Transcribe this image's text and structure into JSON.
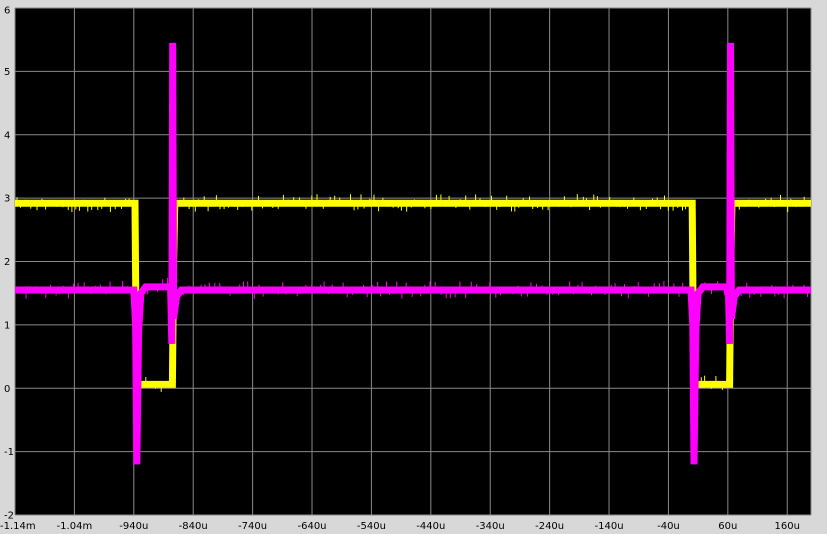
{
  "chart_data": {
    "type": "line",
    "title": "",
    "xlabel": "",
    "ylabel": "",
    "xlim": [
      -1.14,
      0.2
    ],
    "ylim": [
      -2,
      6
    ],
    "grid": true,
    "x_unit": "ms",
    "x_tick_values": [
      -1.14,
      -1.04,
      -0.94,
      -0.84,
      -0.74,
      -0.64,
      -0.54,
      -0.44,
      -0.34,
      -0.24,
      -0.14,
      -0.04,
      0.06,
      0.16
    ],
    "x_tick_labels": [
      "-1.14m",
      "-1.04m",
      "-940u",
      "-840u",
      "-740u",
      "-640u",
      "-540u",
      "-440u",
      "-340u",
      "-240u",
      "-140u",
      "-40u",
      "60u",
      "160u"
    ],
    "y_tick_values": [
      -2,
      -1,
      0,
      1,
      2,
      3,
      4,
      5,
      6
    ],
    "y_tick_labels": [
      "-2",
      "-1",
      "0",
      "1",
      "2",
      "3",
      "4",
      "5",
      "6"
    ],
    "series": [
      {
        "color": "#ffff00",
        "x": [
          -1.14,
          -0.938,
          -0.936,
          -0.934,
          -0.875,
          -0.873,
          -0.871,
          -0.0,
          0.002,
          0.004,
          0.063,
          0.065,
          0.067,
          0.2
        ],
        "y": [
          2.92,
          2.92,
          0.6,
          0.06,
          0.06,
          2.0,
          2.92,
          2.92,
          0.6,
          0.06,
          0.06,
          2.0,
          2.92,
          2.92
        ]
      },
      {
        "color": "#ff00ff",
        "x": [
          -1.14,
          -0.94,
          -0.937,
          -0.935,
          -0.932,
          -0.928,
          -0.92,
          -0.878,
          -0.876,
          -0.8745,
          -0.873,
          -0.868,
          -0.86,
          -0.002,
          0.001,
          0.003,
          0.006,
          0.01,
          0.018,
          0.061,
          0.063,
          0.0645,
          0.066,
          0.071,
          0.079,
          0.2
        ],
        "y": [
          1.55,
          1.55,
          1.0,
          -1.2,
          0.9,
          1.5,
          1.6,
          1.6,
          0.7,
          5.45,
          1.1,
          1.45,
          1.55,
          1.55,
          1.0,
          -1.2,
          0.9,
          1.5,
          1.6,
          1.6,
          0.7,
          5.45,
          1.1,
          1.45,
          1.55,
          1.55
        ]
      }
    ]
  },
  "colors": {
    "plot_bg": "#000000",
    "frame_bg": "#d8d8d8",
    "grid": "#8a8a8a"
  }
}
